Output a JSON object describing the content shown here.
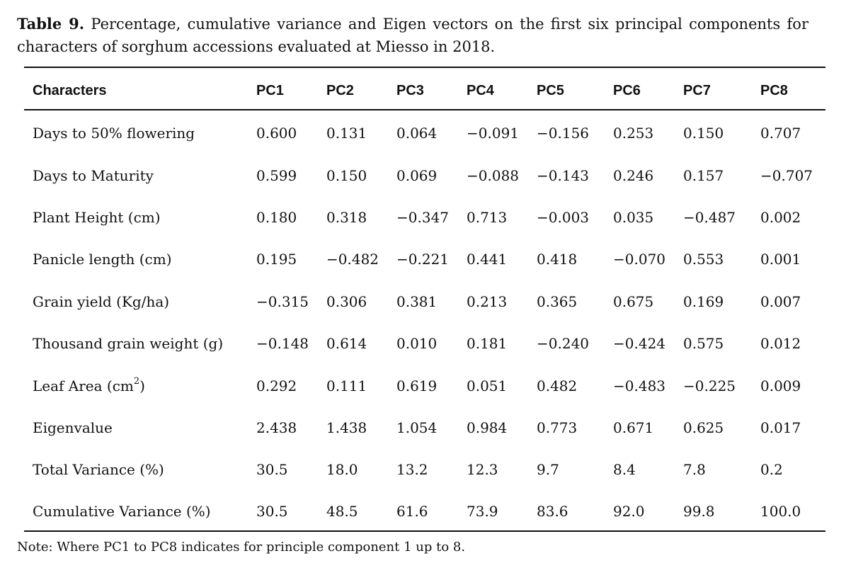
{
  "caption": {
    "label": "Table 9.",
    "text": "Percentage, cumulative variance and Eigen vectors on the first six principal components for characters of sorghum accessions evaluated at Miesso in 2018."
  },
  "table": {
    "headers": [
      "Characters",
      "PC1",
      "PC2",
      "PC3",
      "PC4",
      "PC5",
      "PC6",
      "PC7",
      "PC8"
    ],
    "rows": [
      {
        "label": "Days to 50% flowering",
        "values": [
          "0.600",
          "0.131",
          "0.064",
          "−0.091",
          "−0.156",
          "0.253",
          "0.150",
          "0.707"
        ]
      },
      {
        "label": "Days to Maturity",
        "values": [
          "0.599",
          "0.150",
          "0.069",
          "−0.088",
          "−0.143",
          "0.246",
          "0.157",
          "−0.707"
        ]
      },
      {
        "label": "Plant Height (cm)",
        "values": [
          "0.180",
          "0.318",
          "−0.347",
          "0.713",
          "−0.003",
          "0.035",
          "−0.487",
          "0.002"
        ]
      },
      {
        "label": "Panicle length (cm)",
        "values": [
          "0.195",
          "−0.482",
          "−0.221",
          "0.441",
          "0.418",
          "−0.070",
          "0.553",
          "0.001"
        ]
      },
      {
        "label": "Grain yield (Kg/ha)",
        "values": [
          "−0.315",
          "0.306",
          "0.381",
          "0.213",
          "0.365",
          "0.675",
          "0.169",
          "0.007"
        ]
      },
      {
        "label": "Thousand grain weight (g)",
        "values": [
          "−0.148",
          "0.614",
          "0.010",
          "0.181",
          "−0.240",
          "−0.424",
          "0.575",
          "0.012"
        ]
      },
      {
        "label": "Leaf Area (cm",
        "label_sup": "2",
        "label_tail": ")",
        "values": [
          "0.292",
          "0.111",
          "0.619",
          "0.051",
          "0.482",
          "−0.483",
          "−0.225",
          "0.009"
        ]
      },
      {
        "label": "Eigenvalue",
        "values": [
          "2.438",
          "1.438",
          "1.054",
          "0.984",
          "0.773",
          "0.671",
          "0.625",
          "0.017"
        ]
      },
      {
        "label": "Total Variance (%)",
        "values": [
          "30.5",
          "18.0",
          "13.2",
          "12.3",
          "9.7",
          "8.4",
          "7.8",
          "0.2"
        ]
      },
      {
        "label": "Cumulative Variance (%)",
        "values": [
          "30.5",
          "48.5",
          "61.6",
          "73.9",
          "83.6",
          "92.0",
          "99.8",
          "100.0"
        ]
      }
    ]
  },
  "note": "Note: Where PC1 to PC8 indicates for principle component 1 up to 8."
}
